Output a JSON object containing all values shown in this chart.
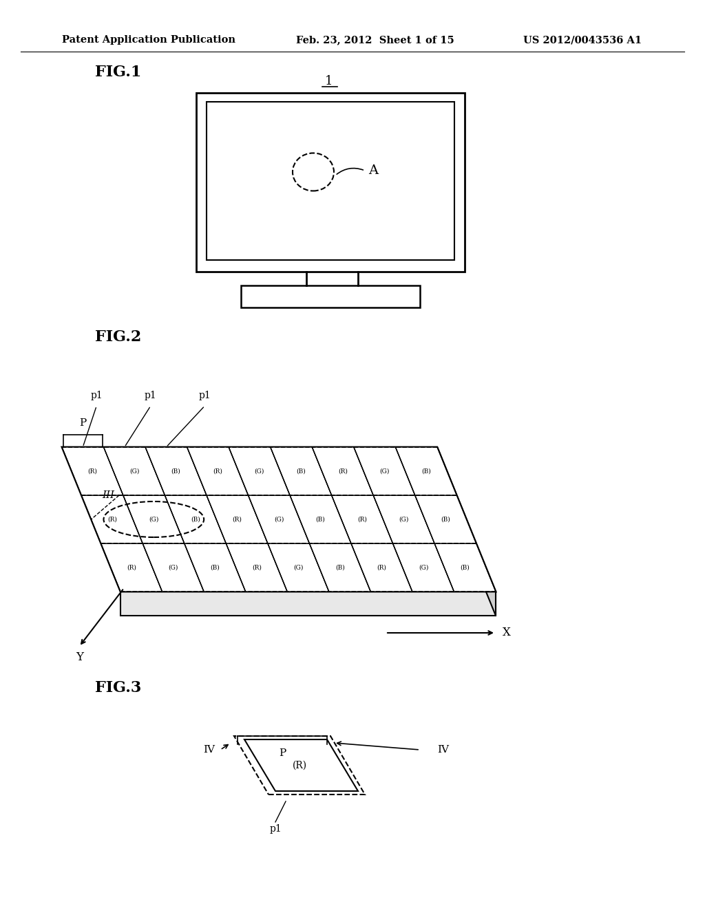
{
  "bg_color": "#ffffff",
  "text_color": "#000000",
  "header_left": "Patent Application Publication",
  "header_mid": "Feb. 23, 2012  Sheet 1 of 15",
  "header_right": "US 2012/0043536 A1",
  "fig1_label": "FIG.1",
  "fig1_num": "1",
  "fig2_label": "FIG.2",
  "fig3_label": "FIG.3"
}
